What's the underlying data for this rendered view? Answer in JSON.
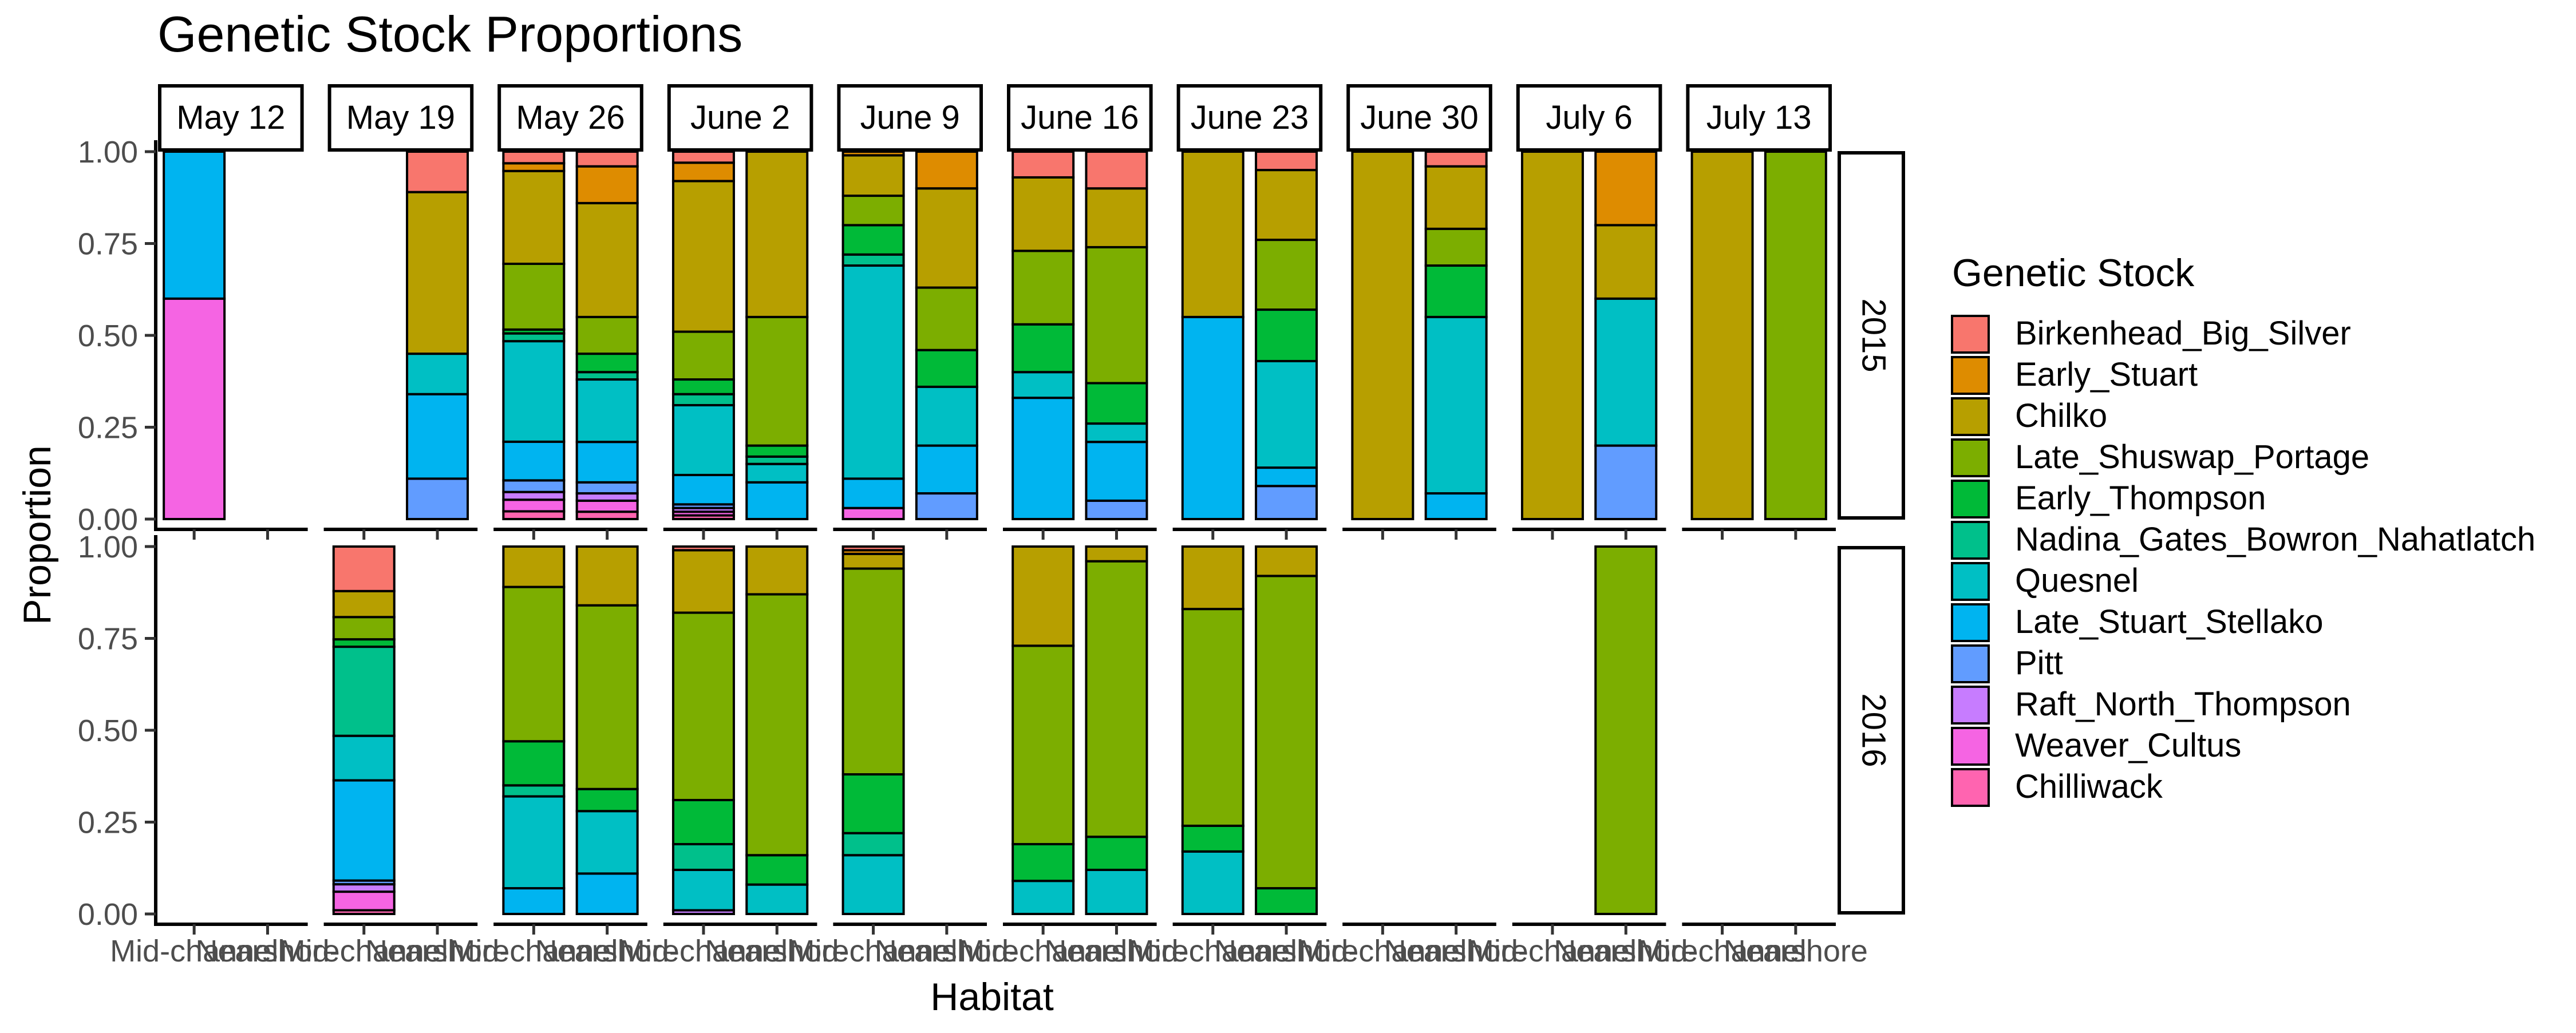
{
  "chart_data": {
    "type": "bar",
    "subtype": "stacked-proportion-faceted",
    "title": "Genetic Stock Proportions",
    "xlabel": "Habitat",
    "ylabel": "Proportion",
    "ylim": [
      0,
      1
    ],
    "y_ticks": [
      "0.00",
      "0.25",
      "0.50",
      "0.75",
      "1.00"
    ],
    "grid": false,
    "legend_position": "right",
    "legend_title": "Genetic Stock",
    "categories": [
      "Mid-channel",
      "Nearshore"
    ],
    "column_facets": [
      "May 12",
      "May 19",
      "May 26",
      "June 2",
      "June 9",
      "June 16",
      "June 23",
      "June 30",
      "July 6",
      "July 13"
    ],
    "row_facets": [
      "2015",
      "2016"
    ],
    "stack_order_bottom_to_top": [
      "Chilliwack",
      "Weaver_Cultus",
      "Raft_North_Thompson",
      "Pitt",
      "Late_Stuart_Stellako",
      "Quesnel",
      "Nadina_Gates_Bowron_Nahatlatch",
      "Early_Thompson",
      "Late_Shuswap_Portage",
      "Chilko",
      "Early_Stuart",
      "Birkenhead_Big_Silver"
    ],
    "series": [
      {
        "name": "Birkenhead_Big_Silver",
        "color": "#F8766D"
      },
      {
        "name": "Early_Stuart",
        "color": "#DE8C00"
      },
      {
        "name": "Chilko",
        "color": "#B79F00"
      },
      {
        "name": "Late_Shuswap_Portage",
        "color": "#7CAE00"
      },
      {
        "name": "Early_Thompson",
        "color": "#00BA38"
      },
      {
        "name": "Nadina_Gates_Bowron_Nahatlatch",
        "color": "#00C08B"
      },
      {
        "name": "Quesnel",
        "color": "#00BFC4"
      },
      {
        "name": "Late_Stuart_Stellako",
        "color": "#00B4F0"
      },
      {
        "name": "Pitt",
        "color": "#619CFF"
      },
      {
        "name": "Raft_North_Thompson",
        "color": "#C77CFF"
      },
      {
        "name": "Weaver_Cultus",
        "color": "#F564E3"
      },
      {
        "name": "Chilliwack",
        "color": "#FF64B0"
      }
    ],
    "bars": [
      {
        "year": "2015",
        "date": "May 12",
        "habitat": "Mid-channel",
        "segments": {
          "Weaver_Cultus": 0.6,
          "Late_Stuart_Stellako": 0.4
        }
      },
      {
        "year": "2015",
        "date": "May 19",
        "habitat": "Nearshore",
        "segments": {
          "Pitt": 0.11,
          "Late_Stuart_Stellako": 0.23,
          "Quesnel": 0.11,
          "Chilko": 0.44,
          "Birkenhead_Big_Silver": 0.11
        }
      },
      {
        "year": "2015",
        "date": "May 26",
        "habitat": "Mid-channel",
        "segments": {
          "Chilliwack": 0.02,
          "Weaver_Cultus": 0.03,
          "Raft_North_Thompson": 0.02,
          "Pitt": 0.03,
          "Late_Stuart_Stellako": 0.1,
          "Quesnel": 0.26,
          "Nadina_Gates_Bowron_Nahatlatch": 0.02,
          "Early_Thompson": 0.01,
          "Late_Shuswap_Portage": 0.17,
          "Chilko": 0.24,
          "Early_Stuart": 0.02,
          "Birkenhead_Big_Silver": 0.03
        }
      },
      {
        "year": "2015",
        "date": "May 26",
        "habitat": "Nearshore",
        "segments": {
          "Chilliwack": 0.02,
          "Weaver_Cultus": 0.03,
          "Raft_North_Thompson": 0.02,
          "Pitt": 0.03,
          "Late_Stuart_Stellako": 0.11,
          "Quesnel": 0.17,
          "Nadina_Gates_Bowron_Nahatlatch": 0.02,
          "Early_Thompson": 0.05,
          "Late_Shuswap_Portage": 0.1,
          "Chilko": 0.31,
          "Early_Stuart": 0.1,
          "Birkenhead_Big_Silver": 0.04
        }
      },
      {
        "year": "2015",
        "date": "June 2",
        "habitat": "Mid-channel",
        "segments": {
          "Chilliwack": 0.01,
          "Weaver_Cultus": 0.01,
          "Raft_North_Thompson": 0.01,
          "Pitt": 0.01,
          "Late_Stuart_Stellako": 0.08,
          "Quesnel": 0.19,
          "Nadina_Gates_Bowron_Nahatlatch": 0.03,
          "Early_Thompson": 0.04,
          "Late_Shuswap_Portage": 0.13,
          "Chilko": 0.41,
          "Early_Stuart": 0.05,
          "Birkenhead_Big_Silver": 0.03
        }
      },
      {
        "year": "2015",
        "date": "June 2",
        "habitat": "Nearshore",
        "segments": {
          "Late_Stuart_Stellako": 0.1,
          "Quesnel": 0.05,
          "Nadina_Gates_Bowron_Nahatlatch": 0.02,
          "Early_Thompson": 0.03,
          "Late_Shuswap_Portage": 0.35,
          "Chilko": 0.45
        }
      },
      {
        "year": "2015",
        "date": "June 9",
        "habitat": "Mid-channel",
        "segments": {
          "Weaver_Cultus": 0.03,
          "Late_Stuart_Stellako": 0.08,
          "Quesnel": 0.58,
          "Nadina_Gates_Bowron_Nahatlatch": 0.03,
          "Early_Thompson": 0.08,
          "Late_Shuswap_Portage": 0.08,
          "Chilko": 0.11,
          "Early_Stuart": 0.01
        }
      },
      {
        "year": "2015",
        "date": "June 9",
        "habitat": "Nearshore",
        "segments": {
          "Pitt": 0.07,
          "Late_Stuart_Stellako": 0.13,
          "Quesnel": 0.16,
          "Early_Thompson": 0.1,
          "Late_Shuswap_Portage": 0.17,
          "Chilko": 0.27,
          "Early_Stuart": 0.1
        }
      },
      {
        "year": "2015",
        "date": "June 16",
        "habitat": "Mid-channel",
        "segments": {
          "Late_Stuart_Stellako": 0.33,
          "Quesnel": 0.07,
          "Early_Thompson": 0.13,
          "Late_Shuswap_Portage": 0.2,
          "Chilko": 0.2,
          "Birkenhead_Big_Silver": 0.07
        }
      },
      {
        "year": "2015",
        "date": "June 16",
        "habitat": "Nearshore",
        "segments": {
          "Pitt": 0.05,
          "Late_Stuart_Stellako": 0.16,
          "Quesnel": 0.05,
          "Early_Thompson": 0.11,
          "Late_Shuswap_Portage": 0.37,
          "Chilko": 0.16,
          "Birkenhead_Big_Silver": 0.1
        }
      },
      {
        "year": "2015",
        "date": "June 23",
        "habitat": "Mid-channel",
        "segments": {
          "Late_Stuart_Stellako": 0.55,
          "Chilko": 0.45
        }
      },
      {
        "year": "2015",
        "date": "June 23",
        "habitat": "Nearshore",
        "segments": {
          "Pitt": 0.09,
          "Late_Stuart_Stellako": 0.05,
          "Quesnel": 0.29,
          "Early_Thompson": 0.14,
          "Late_Shuswap_Portage": 0.19,
          "Chilko": 0.19,
          "Birkenhead_Big_Silver": 0.05
        }
      },
      {
        "year": "2015",
        "date": "June 30",
        "habitat": "Mid-channel",
        "segments": {
          "Chilko": 1.0
        }
      },
      {
        "year": "2015",
        "date": "June 30",
        "habitat": "Nearshore",
        "segments": {
          "Late_Stuart_Stellako": 0.07,
          "Quesnel": 0.48,
          "Early_Thompson": 0.14,
          "Late_Shuswap_Portage": 0.1,
          "Chilko": 0.17,
          "Birkenhead_Big_Silver": 0.04
        }
      },
      {
        "year": "2015",
        "date": "July 6",
        "habitat": "Mid-channel",
        "segments": {
          "Chilko": 1.0
        }
      },
      {
        "year": "2015",
        "date": "July 6",
        "habitat": "Nearshore",
        "segments": {
          "Pitt": 0.2,
          "Quesnel": 0.4,
          "Chilko": 0.2,
          "Early_Stuart": 0.2
        }
      },
      {
        "year": "2015",
        "date": "July 13",
        "habitat": "Mid-channel",
        "segments": {
          "Chilko": 1.0
        }
      },
      {
        "year": "2015",
        "date": "July 13",
        "habitat": "Nearshore",
        "segments": {
          "Late_Shuswap_Portage": 1.0
        }
      },
      {
        "year": "2016",
        "date": "May 19",
        "habitat": "Mid-channel",
        "segments": {
          "Chilliwack": 0.01,
          "Weaver_Cultus": 0.05,
          "Raft_North_Thompson": 0.02,
          "Pitt": 0.01,
          "Late_Stuart_Stellako": 0.27,
          "Quesnel": 0.12,
          "Nadina_Gates_Bowron_Nahatlatch": 0.24,
          "Early_Thompson": 0.02,
          "Late_Shuswap_Portage": 0.06,
          "Chilko": 0.07,
          "Birkenhead_Big_Silver": 0.12
        }
      },
      {
        "year": "2016",
        "date": "May 26",
        "habitat": "Mid-channel",
        "segments": {
          "Late_Stuart_Stellako": 0.07,
          "Quesnel": 0.25,
          "Nadina_Gates_Bowron_Nahatlatch": 0.03,
          "Early_Thompson": 0.12,
          "Late_Shuswap_Portage": 0.42,
          "Chilko": 0.11
        }
      },
      {
        "year": "2016",
        "date": "May 26",
        "habitat": "Nearshore",
        "segments": {
          "Late_Stuart_Stellako": 0.11,
          "Quesnel": 0.17,
          "Early_Thompson": 0.06,
          "Late_Shuswap_Portage": 0.5,
          "Chilko": 0.16
        }
      },
      {
        "year": "2016",
        "date": "June 2",
        "habitat": "Mid-channel",
        "segments": {
          "Quesnel": 0.11,
          "Nadina_Gates_Bowron_Nahatlatch": 0.07,
          "Early_Thompson": 0.12,
          "Late_Shuswap_Portage": 0.51,
          "Chilko": 0.17,
          "Raft_North_Thompson": 0.01,
          "Birkenhead_Big_Silver": 0.01
        }
      },
      {
        "year": "2016",
        "date": "June 2",
        "habitat": "Nearshore",
        "segments": {
          "Quesnel": 0.08,
          "Early_Thompson": 0.08,
          "Late_Shuswap_Portage": 0.71,
          "Chilko": 0.13
        }
      },
      {
        "year": "2016",
        "date": "June 9",
        "habitat": "Mid-channel",
        "segments": {
          "Quesnel": 0.16,
          "Nadina_Gates_Bowron_Nahatlatch": 0.06,
          "Early_Thompson": 0.16,
          "Late_Shuswap_Portage": 0.56,
          "Chilko": 0.04,
          "Early_Stuart": 0.01,
          "Birkenhead_Big_Silver": 0.01
        }
      },
      {
        "year": "2016",
        "date": "June 16",
        "habitat": "Mid-channel",
        "segments": {
          "Quesnel": 0.09,
          "Early_Thompson": 0.1,
          "Late_Shuswap_Portage": 0.54,
          "Chilko": 0.27
        }
      },
      {
        "year": "2016",
        "date": "June 16",
        "habitat": "Nearshore",
        "segments": {
          "Quesnel": 0.12,
          "Early_Thompson": 0.09,
          "Late_Shuswap_Portage": 0.75,
          "Chilko": 0.04
        }
      },
      {
        "year": "2016",
        "date": "June 23",
        "habitat": "Mid-channel",
        "segments": {
          "Quesnel": 0.17,
          "Early_Thompson": 0.07,
          "Late_Shuswap_Portage": 0.59,
          "Chilko": 0.17
        }
      },
      {
        "year": "2016",
        "date": "June 23",
        "habitat": "Nearshore",
        "segments": {
          "Early_Thompson": 0.07,
          "Late_Shuswap_Portage": 0.85,
          "Chilko": 0.08
        }
      },
      {
        "year": "2016",
        "date": "July 6",
        "habitat": "Nearshore",
        "segments": {
          "Late_Shuswap_Portage": 1.0
        }
      }
    ]
  }
}
